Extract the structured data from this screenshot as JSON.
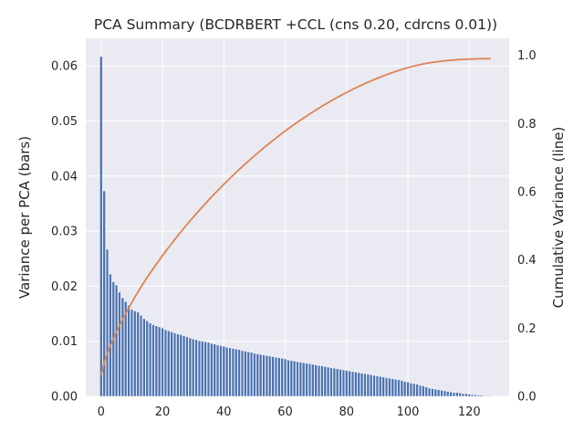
{
  "chart_data": {
    "type": "bar",
    "title": "PCA Summary (BCDRBERT +CCL (cns 0.20, cdrcns 0.01))",
    "xlabel": "",
    "ylabel_left": "Variance per PCA (bars)",
    "ylabel_right": "Cumulative Variance (line)",
    "xlim": [
      -5.0,
      133.0
    ],
    "ylim_left": [
      0.0,
      0.065
    ],
    "ylim_right": [
      0.0,
      1.05
    ],
    "x_ticks": [
      0,
      20,
      40,
      60,
      80,
      100,
      120
    ],
    "y_ticks_left": [
      0.0,
      0.01,
      0.02,
      0.03,
      0.04,
      0.05,
      0.06
    ],
    "y_ticks_right": [
      0.0,
      0.2,
      0.4,
      0.6,
      0.8,
      1.0
    ],
    "grid": true,
    "legend": "none",
    "colors": {
      "background": "#eaeaf2",
      "grid": "#ffffff",
      "bars": "#4c72b0",
      "line": "#dd8452"
    },
    "series": [
      {
        "kind": "bar",
        "axis": "left",
        "values": [
          0.0617,
          0.0373,
          0.0267,
          0.0222,
          0.0208,
          0.0202,
          0.0189,
          0.0179,
          0.0172,
          0.0165,
          0.0158,
          0.0155,
          0.0153,
          0.0147,
          0.0141,
          0.0137,
          0.0133,
          0.013,
          0.0128,
          0.0126,
          0.0124,
          0.0121,
          0.0119,
          0.0117,
          0.0115,
          0.0113,
          0.0112,
          0.011,
          0.0108,
          0.0106,
          0.0104,
          0.0103,
          0.0101,
          0.01,
          0.0099,
          0.0098,
          0.0096,
          0.0095,
          0.0093,
          0.0092,
          0.0091,
          0.0089,
          0.0088,
          0.0087,
          0.0086,
          0.0085,
          0.0083,
          0.0082,
          0.0081,
          0.008,
          0.0078,
          0.0077,
          0.0076,
          0.0075,
          0.0074,
          0.0073,
          0.0072,
          0.0071,
          0.007,
          0.0069,
          0.0068,
          0.0066,
          0.0065,
          0.0064,
          0.0063,
          0.0062,
          0.0061,
          0.006,
          0.0059,
          0.0058,
          0.0057,
          0.0056,
          0.0055,
          0.0054,
          0.0053,
          0.0052,
          0.0051,
          0.005,
          0.0049,
          0.0048,
          0.0047,
          0.0046,
          0.0045,
          0.0044,
          0.0043,
          0.0042,
          0.0041,
          0.004,
          0.0039,
          0.0038,
          0.0037,
          0.0036,
          0.0035,
          0.0034,
          0.0033,
          0.0032,
          0.0031,
          0.003,
          0.0029,
          0.0027,
          0.0026,
          0.0024,
          0.0023,
          0.0022,
          0.002,
          0.0019,
          0.0017,
          0.0015,
          0.0014,
          0.0013,
          0.0012,
          0.0011,
          0.001,
          0.0009,
          0.0008,
          0.0007,
          0.0007,
          0.0006,
          0.0005,
          0.0005,
          0.0004,
          0.0003,
          0.0003,
          0.0002,
          0.0002,
          0.0001,
          0.0001,
          0.0001
        ]
      },
      {
        "kind": "line",
        "axis": "right",
        "values": "cumulative sum of bar values"
      }
    ]
  }
}
